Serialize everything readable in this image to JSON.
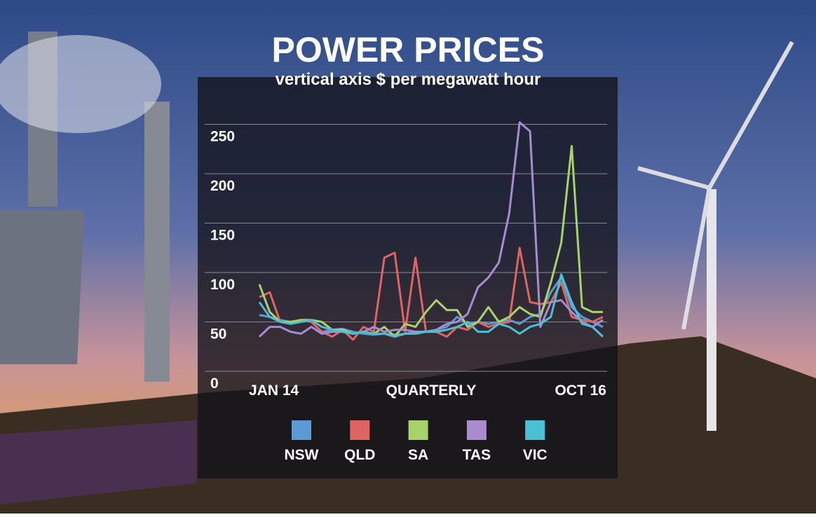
{
  "chart_data": {
    "type": "line",
    "title": "POWER PRICES",
    "subtitle": "vertical axis $ per megawatt hour",
    "x_label": "QUARTERLY",
    "categories": [
      "JAN 14",
      null,
      null,
      null,
      null,
      null,
      null,
      null,
      null,
      null,
      null,
      null,
      null,
      null,
      null,
      null,
      null,
      null,
      null,
      null,
      null,
      null,
      null,
      null,
      null,
      null,
      null,
      null,
      null,
      null,
      null,
      null,
      null,
      "OCT 16"
    ],
    "series": [
      {
        "name": "NSW",
        "color": "#5b9bd5",
        "values": [
          57,
          55,
          52,
          50,
          52,
          50,
          40,
          42,
          43,
          40,
          38,
          37,
          38,
          37,
          38,
          40,
          40,
          42,
          45,
          55,
          48,
          50,
          48,
          50,
          52,
          48,
          55,
          58,
          80,
          95,
          65,
          55,
          50,
          45
        ]
      },
      {
        "name": "QLD",
        "color": "#e06464",
        "values": [
          75,
          80,
          50,
          50,
          52,
          50,
          40,
          35,
          42,
          32,
          45,
          40,
          115,
          120,
          40,
          115,
          40,
          40,
          35,
          45,
          42,
          50,
          45,
          48,
          50,
          125,
          70,
          68,
          70,
          90,
          55,
          52,
          50,
          55
        ]
      },
      {
        "name": "SA",
        "color": "#a8d26a",
        "values": [
          88,
          60,
          50,
          50,
          52,
          52,
          50,
          42,
          42,
          38,
          40,
          38,
          45,
          35,
          48,
          45,
          60,
          72,
          62,
          62,
          45,
          50,
          65,
          50,
          55,
          65,
          58,
          55,
          90,
          130,
          228,
          65,
          60,
          60
        ]
      },
      {
        "name": "TAS",
        "color": "#a98bd0",
        "values": [
          35,
          45,
          45,
          40,
          38,
          45,
          38,
          40,
          40,
          38,
          40,
          45,
          40,
          42,
          42,
          40,
          40,
          42,
          48,
          50,
          58,
          85,
          95,
          110,
          160,
          252,
          243,
          45,
          70,
          72,
          60,
          50,
          45,
          52
        ]
      },
      {
        "name": "VIC",
        "color": "#4bbfd4",
        "values": [
          70,
          55,
          50,
          48,
          50,
          52,
          45,
          42,
          40,
          38,
          40,
          38,
          38,
          35,
          38,
          38,
          40,
          40,
          42,
          45,
          50,
          40,
          40,
          48,
          45,
          38,
          45,
          48,
          55,
          98,
          70,
          48,
          45,
          35
        ]
      }
    ],
    "ylim": [
      0,
      260
    ],
    "yticks": [
      0,
      50,
      100,
      150,
      200,
      250
    ],
    "grid": true
  }
}
